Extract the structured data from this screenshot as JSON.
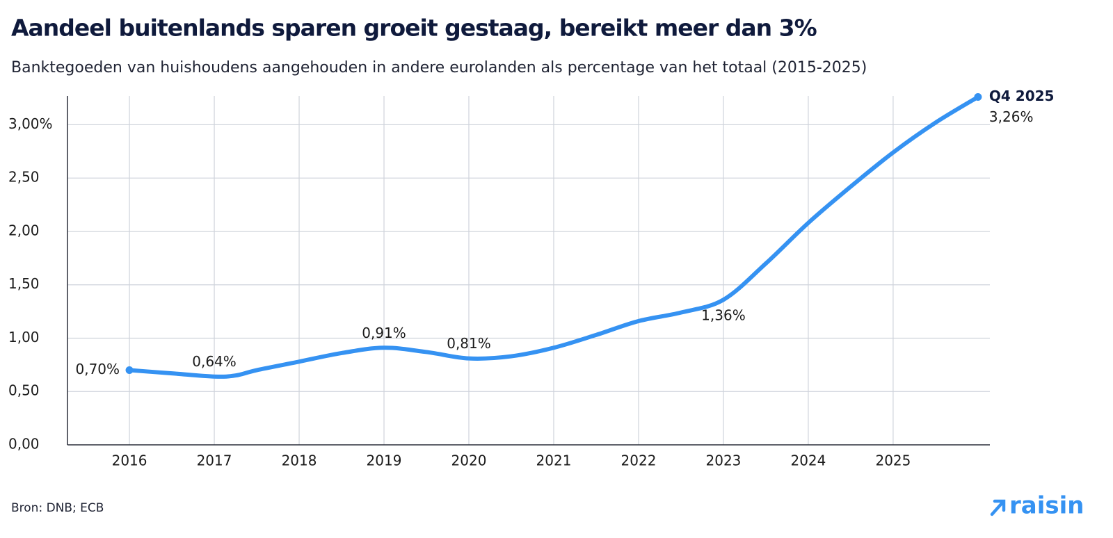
{
  "chart_data": {
    "type": "line",
    "title": "Aandeel buitenlands sparen groeit gestaag, bereikt meer dan 3%",
    "subtitle": "Banktegoeden van huishoudens aangehouden in andere eurolanden als percentage van het totaal (2015-2025)",
    "source": "Bron: DNB; ECB",
    "brand": "raisin",
    "annotation": "Q4 2025",
    "x": [
      2016,
      2016.5,
      2017,
      2017.25,
      2017.5,
      2018,
      2018.5,
      2019,
      2019.5,
      2020,
      2020.5,
      2021,
      2021.5,
      2022,
      2022.5,
      2023,
      2023.5,
      2024,
      2024.5,
      2025,
      2025.5,
      2026
    ],
    "series": [
      {
        "color": "#3592f2",
        "values": [
          0.7,
          0.67,
          0.64,
          0.65,
          0.7,
          0.78,
          0.86,
          0.91,
          0.87,
          0.81,
          0.83,
          0.91,
          1.03,
          1.16,
          1.24,
          1.36,
          1.7,
          2.08,
          2.42,
          2.74,
          3.02,
          3.26
        ],
        "value_labels": [
          "0,70%",
          null,
          "0,64%",
          null,
          null,
          null,
          null,
          "0,91%",
          null,
          "0,81%",
          null,
          null,
          null,
          null,
          null,
          "1,36%",
          null,
          null,
          null,
          null,
          null,
          "3,26%"
        ]
      }
    ],
    "xlim": [
      2015.27,
      2026.14
    ],
    "xticks": [
      2016,
      2017,
      2018,
      2019,
      2020,
      2021,
      2022,
      2023,
      2024,
      2025
    ],
    "ylim": [
      0,
      3.27
    ],
    "yticks": [
      {
        "value": 0,
        "label": "0,00"
      },
      {
        "value": 0.5,
        "label": "0,50"
      },
      {
        "value": 1,
        "label": "1,00"
      },
      {
        "value": 1.5,
        "label": "1,50"
      },
      {
        "value": 2,
        "label": "2,00"
      },
      {
        "value": 2.5,
        "label": "2,50"
      },
      {
        "value": 3,
        "label": "3,00%"
      }
    ],
    "grid": true
  }
}
